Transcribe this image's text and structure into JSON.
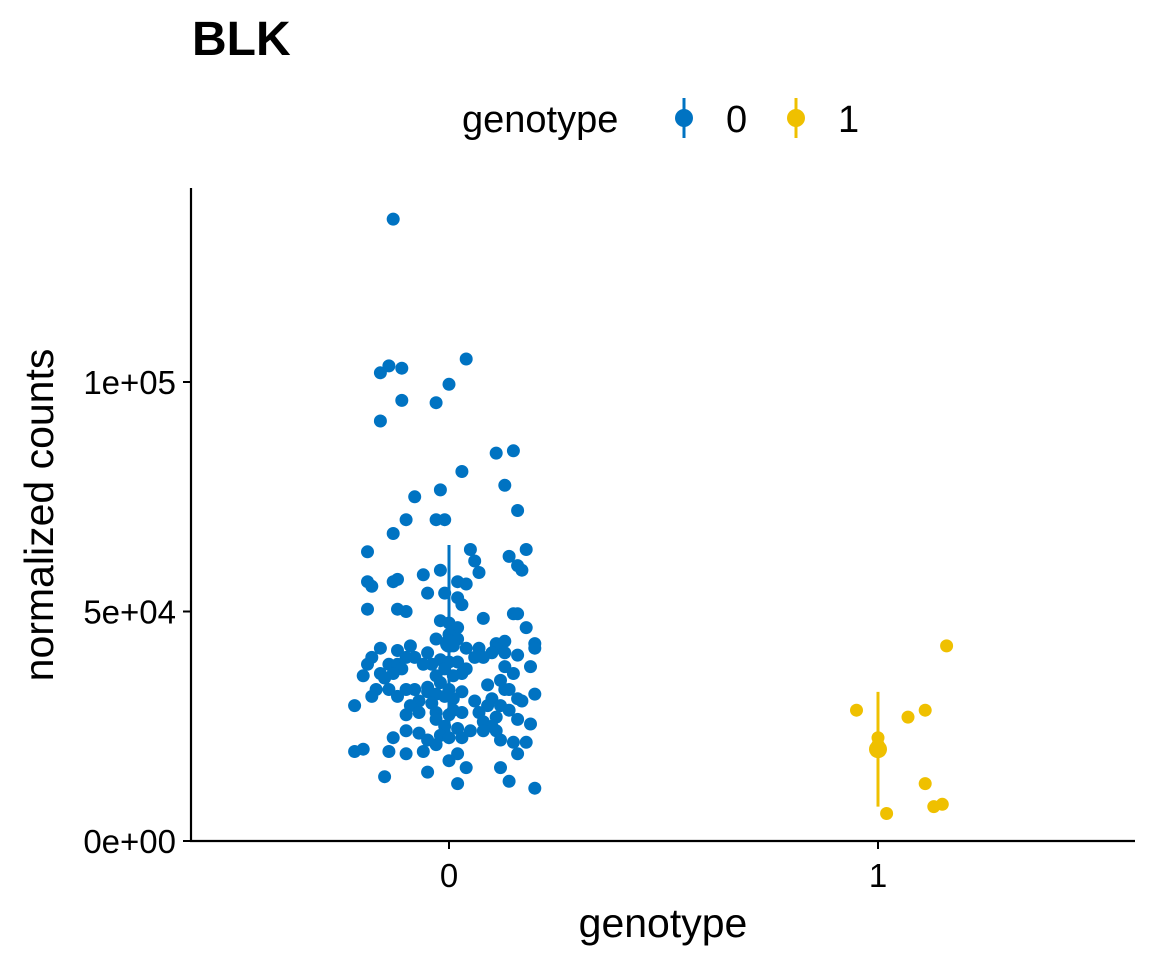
{
  "chart_data": {
    "type": "scatter",
    "title": "BLK",
    "xlabel": "genotype",
    "ylabel": "normalized counts",
    "categories": [
      "0",
      "1"
    ],
    "ylim": [
      0,
      137000
    ],
    "y_ticks": [
      0,
      50000,
      100000
    ],
    "y_tick_labels": [
      "0e+00",
      "5e+04",
      "1e+05"
    ],
    "x_tick_labels": [
      "0",
      "1"
    ],
    "grid": false,
    "legend": {
      "title": "genotype",
      "position": "top",
      "entries": [
        "0",
        "1"
      ]
    },
    "colors": {
      "0": "#0073C2",
      "1": "#EFC000"
    },
    "series": [
      {
        "name": "0",
        "summary": {
          "mean": 43000,
          "low": 21500,
          "high": 64500
        },
        "points": [
          [
            -0.13,
            135500
          ],
          [
            0.04,
            105000
          ],
          [
            -0.14,
            103500
          ],
          [
            -0.11,
            103000
          ],
          [
            -0.16,
            102000
          ],
          [
            0.0,
            99500
          ],
          [
            -0.11,
            96000
          ],
          [
            -0.03,
            95500
          ],
          [
            -0.16,
            91500
          ],
          [
            0.11,
            84500
          ],
          [
            0.15,
            85000
          ],
          [
            0.03,
            80500
          ],
          [
            0.13,
            77500
          ],
          [
            -0.02,
            76500
          ],
          [
            -0.08,
            75000
          ],
          [
            0.16,
            72000
          ],
          [
            -0.1,
            70000
          ],
          [
            -0.03,
            70000
          ],
          [
            -0.01,
            70000
          ],
          [
            -0.13,
            67000
          ],
          [
            0.05,
            63500
          ],
          [
            0.18,
            63500
          ],
          [
            -0.19,
            63000
          ],
          [
            0.14,
            62000
          ],
          [
            0.06,
            61000
          ],
          [
            0.16,
            60000
          ],
          [
            0.07,
            58500
          ],
          [
            -0.02,
            59000
          ],
          [
            -0.06,
            58000
          ],
          [
            0.17,
            59000
          ],
          [
            -0.12,
            57000
          ],
          [
            -0.13,
            56500
          ],
          [
            -0.19,
            56500
          ],
          [
            -0.18,
            55500
          ],
          [
            0.02,
            56500
          ],
          [
            0.04,
            56000
          ],
          [
            -0.05,
            54000
          ],
          [
            -0.01,
            54000
          ],
          [
            0.02,
            53000
          ],
          [
            0.03,
            51500
          ],
          [
            -0.12,
            50500
          ],
          [
            -0.19,
            50500
          ],
          [
            -0.1,
            50000
          ],
          [
            0.15,
            49500
          ],
          [
            0.16,
            49500
          ],
          [
            0.08,
            48500
          ],
          [
            -0.02,
            48000
          ],
          [
            0.0,
            47500
          ],
          [
            0.02,
            46500
          ],
          [
            0.18,
            46500
          ],
          [
            0.0,
            45000
          ],
          [
            -0.03,
            44000
          ],
          [
            0.02,
            44000
          ],
          [
            0.0,
            43000
          ],
          [
            0.01,
            42500
          ],
          [
            0.11,
            43000
          ],
          [
            0.13,
            43500
          ],
          [
            0.2,
            43000
          ],
          [
            -0.09,
            42500
          ],
          [
            0.04,
            42000
          ],
          [
            0.07,
            42000
          ],
          [
            0.11,
            42000
          ],
          [
            0.2,
            42000
          ],
          [
            -0.16,
            42000
          ],
          [
            -0.12,
            41500
          ],
          [
            -0.05,
            41000
          ],
          [
            0.1,
            41000
          ],
          [
            0.13,
            41000
          ],
          [
            0.16,
            40500
          ],
          [
            0.08,
            40000
          ],
          [
            0.06,
            40000
          ],
          [
            -0.1,
            40000
          ],
          [
            -0.08,
            40000
          ],
          [
            -0.18,
            40000
          ],
          [
            -0.02,
            39500
          ],
          [
            0.0,
            39000
          ],
          [
            0.02,
            39000
          ],
          [
            -0.04,
            38500
          ],
          [
            -0.06,
            38500
          ],
          [
            -0.14,
            38500
          ],
          [
            -0.12,
            38500
          ],
          [
            0.04,
            37500
          ],
          [
            -0.01,
            37500
          ],
          [
            0.13,
            38000
          ],
          [
            0.19,
            38000
          ],
          [
            -0.19,
            38500
          ],
          [
            -0.11,
            37500
          ],
          [
            0.03,
            36500
          ],
          [
            0.01,
            36000
          ],
          [
            -0.03,
            36000
          ],
          [
            -0.13,
            36500
          ],
          [
            -0.16,
            36500
          ],
          [
            0.15,
            36500
          ],
          [
            -0.15,
            35500
          ],
          [
            -0.2,
            36000
          ],
          [
            -0.02,
            34500
          ],
          [
            -0.05,
            33500
          ],
          [
            0.12,
            35000
          ],
          [
            0.09,
            34000
          ],
          [
            -0.08,
            33000
          ],
          [
            -0.1,
            33000
          ],
          [
            -0.17,
            33000
          ],
          [
            -0.14,
            33000
          ],
          [
            0.13,
            33000
          ],
          [
            0.0,
            33000
          ],
          [
            0.14,
            33000
          ],
          [
            0.03,
            32500
          ],
          [
            -0.05,
            32500
          ],
          [
            -0.03,
            32000
          ],
          [
            0.2,
            32000
          ],
          [
            -0.18,
            31500
          ],
          [
            -0.01,
            31500
          ],
          [
            -0.12,
            31500
          ],
          [
            0.01,
            31000
          ],
          [
            0.1,
            31000
          ],
          [
            0.16,
            31000
          ],
          [
            -0.04,
            30000
          ],
          [
            0.06,
            30500
          ],
          [
            -0.07,
            30500
          ],
          [
            0.17,
            30500
          ],
          [
            -0.22,
            29500
          ],
          [
            -0.09,
            29500
          ],
          [
            0.09,
            29500
          ],
          [
            0.12,
            29500
          ],
          [
            0.01,
            28500
          ],
          [
            0.03,
            28000
          ],
          [
            -0.07,
            28000
          ],
          [
            -0.03,
            28000
          ],
          [
            0.14,
            28500
          ],
          [
            0.07,
            28000
          ],
          [
            -0.1,
            27500
          ],
          [
            0.0,
            27500
          ],
          [
            0.11,
            27000
          ],
          [
            0.16,
            26500
          ],
          [
            -0.03,
            26500
          ],
          [
            0.08,
            26000
          ],
          [
            0.1,
            25000
          ],
          [
            -0.01,
            25000
          ],
          [
            0.19,
            25500
          ],
          [
            0.02,
            24500
          ],
          [
            0.05,
            24000
          ],
          [
            0.08,
            24000
          ],
          [
            -0.1,
            24000
          ],
          [
            0.11,
            24000
          ],
          [
            -0.07,
            23500
          ],
          [
            -0.02,
            23000
          ],
          [
            0.0,
            22500
          ],
          [
            0.03,
            22500
          ],
          [
            -0.13,
            22500
          ],
          [
            -0.05,
            22000
          ],
          [
            0.12,
            22000
          ],
          [
            0.15,
            21500
          ],
          [
            0.18,
            21500
          ],
          [
            -0.03,
            21000
          ],
          [
            -0.2,
            20000
          ],
          [
            -0.14,
            19500
          ],
          [
            -0.06,
            19500
          ],
          [
            -0.22,
            19500
          ],
          [
            0.02,
            19000
          ],
          [
            -0.1,
            19000
          ],
          [
            0.16,
            19000
          ],
          [
            0.0,
            17500
          ],
          [
            0.12,
            16000
          ],
          [
            0.04,
            16000
          ],
          [
            -0.05,
            15000
          ],
          [
            -0.15,
            14000
          ],
          [
            0.14,
            13000
          ],
          [
            0.02,
            12500
          ],
          [
            0.2,
            11500
          ]
        ]
      },
      {
        "name": "1",
        "summary": {
          "mean": 20000,
          "low": 7500,
          "high": 32500
        },
        "points": [
          [
            1.16,
            42500
          ],
          [
            0.95,
            28500
          ],
          [
            1.11,
            28500
          ],
          [
            1.07,
            27000
          ],
          [
            1.0,
            22500
          ],
          [
            1.0,
            21000
          ],
          [
            1.11,
            12500
          ],
          [
            1.15,
            8000
          ],
          [
            1.13,
            7500
          ],
          [
            1.02,
            6000
          ]
        ]
      }
    ]
  }
}
